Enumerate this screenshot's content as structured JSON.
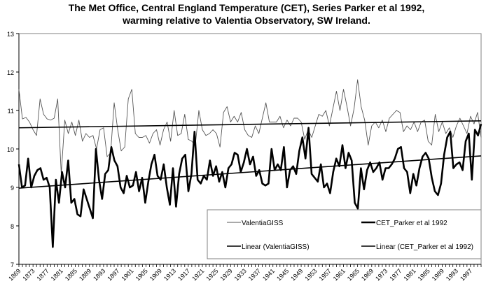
{
  "chart_data": {
    "type": "line",
    "title": "The Met Office, Central England Temperature (CET),   Series Parker et al 1992,",
    "subtitle": "warming relative to Valentia Observatory, SW Ireland.",
    "xlabel": "",
    "ylabel": "",
    "ylim": [
      7,
      13
    ],
    "xlim": [
      1869,
      2000
    ],
    "yticks": [
      "7",
      "8",
      "9",
      "10",
      "11",
      "12",
      "13"
    ],
    "xticks": [
      "1869",
      "1873",
      "1877",
      "1881",
      "1885",
      "1889",
      "1893",
      "1897",
      "1901",
      "1905",
      "1909",
      "1913",
      "1917",
      "1921",
      "1925",
      "1929",
      "1933",
      "1937",
      "1941",
      "1945",
      "1949",
      "1953",
      "1957",
      "1961",
      "1965",
      "1969",
      "1973",
      "1977",
      "1981",
      "1985",
      "1989",
      "1993",
      "1997"
    ],
    "grid": "horizontal",
    "legend_position": "bottom-right",
    "x_start": 1869,
    "series": [
      {
        "name": "ValentiaGISS",
        "style": "thin",
        "values": [
          11.55,
          10.78,
          10.82,
          10.7,
          10.5,
          10.35,
          11.3,
          10.9,
          10.78,
          10.75,
          10.8,
          11.3,
          9.35,
          10.75,
          10.4,
          10.7,
          10.35,
          10.75,
          10.2,
          10.4,
          10.3,
          10.35,
          10.0,
          10.5,
          10.55,
          9.8,
          9.9,
          11.2,
          10.5,
          9.95,
          10.05,
          11.3,
          11.55,
          10.4,
          10.3,
          10.3,
          10.35,
          10.15,
          10.4,
          10.5,
          10.1,
          10.5,
          10.7,
          10.2,
          11.0,
          10.35,
          10.4,
          10.9,
          10.25,
          10.2,
          10.1,
          11.0,
          10.5,
          10.35,
          10.4,
          10.5,
          10.4,
          10.05,
          10.95,
          11.1,
          10.7,
          10.85,
          10.7,
          10.95,
          10.5,
          10.35,
          10.3,
          10.6,
          10.4,
          10.8,
          11.2,
          10.7,
          10.7,
          10.7,
          10.85,
          10.55,
          10.75,
          10.6,
          10.8,
          10.8,
          10.7,
          10.25,
          10.5,
          10.3,
          10.6,
          10.9,
          10.85,
          11.0,
          10.6,
          11.05,
          11.5,
          11.0,
          11.55,
          11.1,
          10.6,
          11.05,
          11.8,
          11.1,
          10.75,
          10.1,
          10.6,
          10.7,
          10.55,
          10.75,
          10.45,
          10.8,
          10.9,
          11.0,
          10.95,
          10.45,
          10.6,
          10.5,
          10.7,
          10.45,
          10.7,
          10.75,
          10.2,
          10.1,
          10.9,
          10.45,
          10.7,
          10.4,
          10.55,
          10.3,
          10.6,
          10.8,
          10.6,
          10.4,
          10.85,
          10.65,
          10.95,
          10.3
        ]
      },
      {
        "name": "CET_Parker et al 1992",
        "style": "thick",
        "values": [
          9.6,
          9.0,
          9.05,
          9.75,
          9.0,
          9.3,
          9.45,
          9.5,
          9.2,
          9.25,
          9.0,
          7.45,
          9.2,
          8.6,
          9.4,
          9.0,
          9.7,
          8.6,
          8.7,
          8.3,
          8.25,
          8.95,
          8.7,
          8.45,
          8.2,
          10.0,
          9.2,
          8.7,
          9.35,
          9.45,
          10.05,
          9.7,
          9.55,
          9.0,
          8.85,
          9.3,
          9.0,
          9.05,
          9.4,
          8.9,
          9.25,
          8.6,
          9.15,
          9.6,
          9.85,
          9.3,
          9.2,
          9.6,
          9.0,
          8.55,
          9.5,
          8.5,
          9.35,
          9.75,
          9.85,
          8.9,
          9.35,
          10.45,
          9.2,
          9.1,
          9.3,
          9.2,
          9.7,
          9.3,
          9.55,
          9.15,
          9.4,
          9.0,
          9.5,
          9.6,
          9.9,
          9.85,
          9.4,
          9.65,
          10.0,
          9.6,
          9.8,
          9.3,
          9.45,
          9.1,
          9.05,
          9.1,
          10.0,
          9.45,
          9.6,
          9.45,
          10.05,
          9.0,
          9.45,
          9.55,
          9.35,
          9.95,
          10.3,
          9.75,
          10.55,
          9.35,
          9.25,
          9.15,
          9.6,
          9.0,
          9.1,
          8.85,
          9.4,
          9.75,
          9.55,
          10.1,
          9.5,
          9.9,
          9.7,
          8.6,
          8.45,
          9.5,
          8.95,
          9.45,
          9.65,
          9.4,
          9.5,
          9.65,
          9.2,
          9.5,
          9.5,
          9.6,
          9.75,
          10.0,
          10.05,
          9.5,
          9.4,
          8.85,
          9.35,
          9.05,
          9.5,
          9.8,
          9.9,
          9.75,
          9.25,
          8.9,
          8.8,
          9.1,
          9.85,
          10.3,
          10.45,
          9.5,
          9.6,
          9.65,
          9.45,
          10.2,
          10.4,
          9.2,
          10.5,
          10.35,
          10.65
        ]
      },
      {
        "name": "Linear (ValentiaGISS)",
        "style": "trend",
        "values": [
          10.55,
          10.73
        ]
      },
      {
        "name": "Linear (CET_Parker et al 1992)",
        "style": "trend",
        "values": [
          8.98,
          9.82
        ]
      }
    ],
    "legend": [
      {
        "label": "ValentiaGISS",
        "style": "thin"
      },
      {
        "label": "CET_Parker et al 1992",
        "style": "thick"
      },
      {
        "label": "Linear (ValentiaGISS)",
        "style": "trend"
      },
      {
        "label": "Linear (CET_Parker et al 1992)",
        "style": "trend"
      }
    ]
  }
}
